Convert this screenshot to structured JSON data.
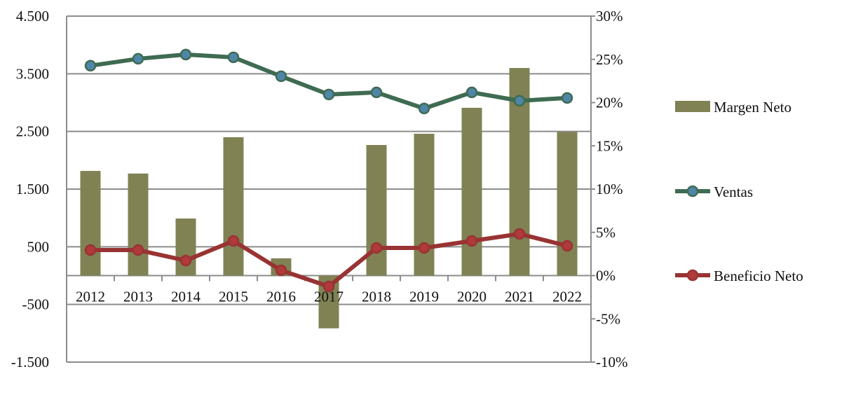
{
  "chart_data": {
    "type": "bar+line",
    "categories": [
      "2012",
      "2013",
      "2014",
      "2015",
      "2016",
      "2017",
      "2018",
      "2019",
      "2020",
      "2021",
      "2022"
    ],
    "left_axis": {
      "ylim": [
        -1500,
        4500
      ],
      "ticks": [
        -1500,
        -500,
        500,
        1500,
        2500,
        3500,
        4500
      ],
      "tick_labels": [
        "-1.500",
        "-500",
        "500",
        "1.500",
        "2.500",
        "3.500",
        "4.500"
      ]
    },
    "right_axis": {
      "ylim": [
        -10,
        30
      ],
      "ticks": [
        -10,
        -5,
        0,
        5,
        10,
        15,
        20,
        25,
        30
      ],
      "tick_labels": [
        "-10%",
        "-5%",
        "0%",
        "5%",
        "10%",
        "15%",
        "20%",
        "25%",
        "30%"
      ]
    },
    "series": [
      {
        "name": "Margen Neto",
        "type": "bar",
        "axis": "right",
        "color": "#808254",
        "values": [
          12.1,
          11.8,
          6.6,
          16.0,
          2.0,
          -6.1,
          15.1,
          16.4,
          19.4,
          24.0,
          16.6
        ]
      },
      {
        "name": "Ventas",
        "type": "line",
        "axis": "left",
        "color": "#3f6b52",
        "marker_color": "#4f86a8",
        "values": [
          3640,
          3760,
          3833,
          3785,
          3457,
          3141,
          3177,
          2898,
          3177,
          3032,
          3080
        ]
      },
      {
        "name": "Beneficio Neto",
        "type": "line",
        "axis": "left",
        "color": "#993333",
        "marker_color": "#b03a3a",
        "values": [
          443,
          443,
          261,
          601,
          91,
          -188,
          480,
          480,
          601,
          723,
          516
        ]
      }
    ],
    "legend_position": "right",
    "grid": true
  }
}
